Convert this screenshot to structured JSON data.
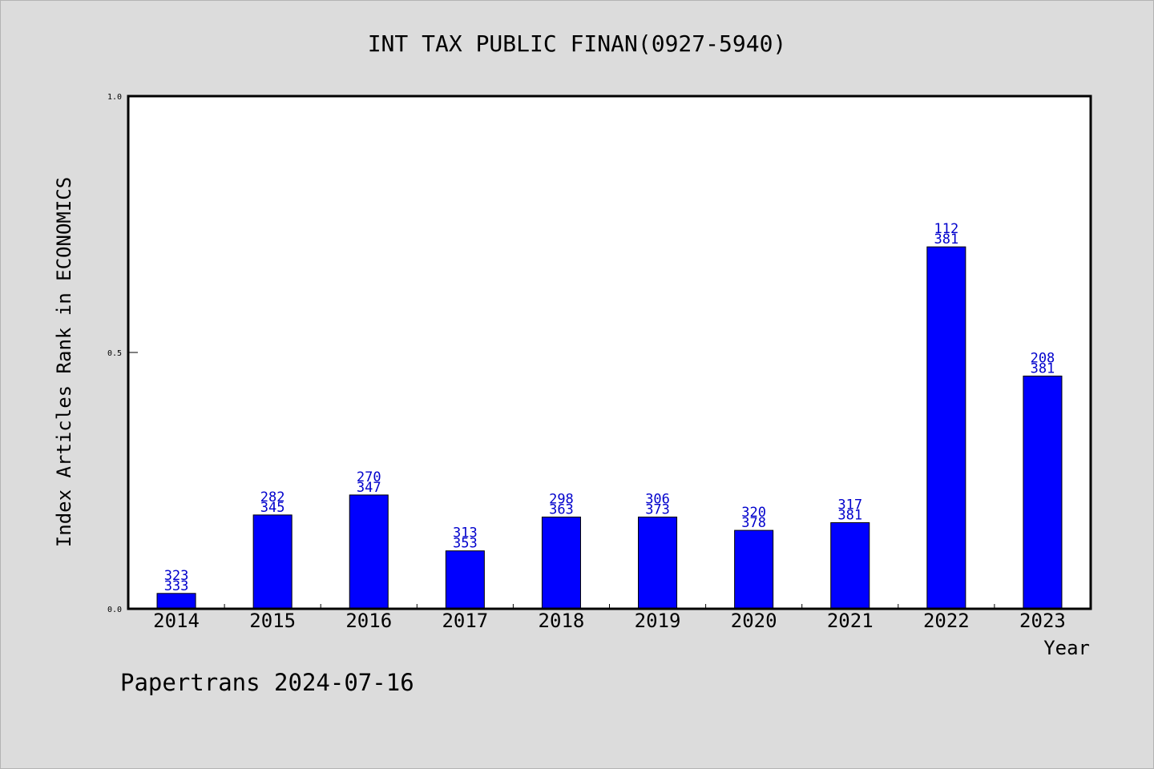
{
  "chart_data": {
    "type": "bar",
    "title": "INT TAX PUBLIC FINAN(0927-5940)",
    "xlabel": "Year",
    "ylabel": "Index Articles Rank in ECONOMICS",
    "ylim": [
      0,
      1
    ],
    "yticks": [
      "0.0",
      "0.5",
      "1.0"
    ],
    "categories": [
      "2014",
      "2015",
      "2016",
      "2017",
      "2018",
      "2019",
      "2020",
      "2021",
      "2022",
      "2023"
    ],
    "values": [
      0.03,
      0.183,
      0.222,
      0.113,
      0.179,
      0.179,
      0.153,
      0.168,
      0.706,
      0.454
    ],
    "labels_top": [
      "323",
      "282",
      "270",
      "313",
      "298",
      "306",
      "320",
      "317",
      "112",
      "208"
    ],
    "labels_bottom": [
      "333",
      "345",
      "347",
      "353",
      "363",
      "373",
      "378",
      "381",
      "381",
      "381"
    ],
    "bar_color": "#0000ff",
    "grid": false
  },
  "footer": "Papertrans 2024-07-16"
}
